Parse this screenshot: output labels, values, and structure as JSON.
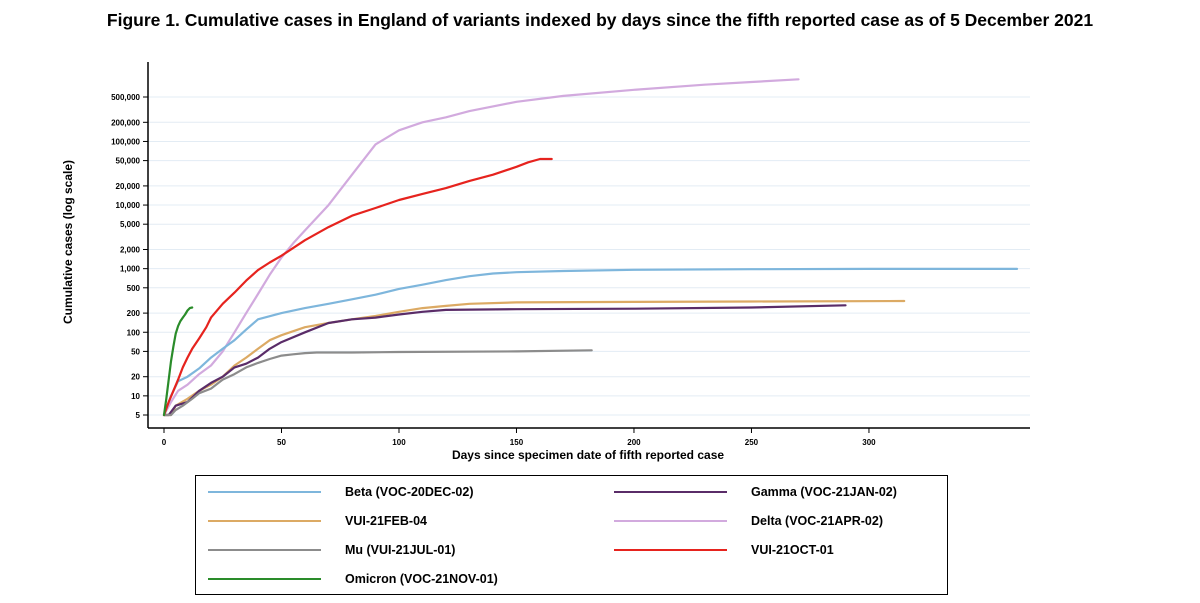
{
  "title": "Figure 1. Cumulative cases in England of variants indexed by days since the fifth reported case as of 5 December 2021",
  "chart_data": {
    "type": "line",
    "title": "Figure 1. Cumulative cases in England of variants indexed by days since the fifth reported case as of 5 December 2021",
    "xlabel": "Days since specimen date of fifth reported case",
    "ylabel": "Cumulative cases (log scale)",
    "yscale": "log",
    "xlim": [
      0,
      365
    ],
    "ylim": [
      5,
      1000000
    ],
    "x_ticks": [
      0,
      50,
      100,
      150,
      200,
      250,
      300
    ],
    "x_tick_labels": [
      "0",
      "50",
      "100",
      "150",
      "200",
      "250",
      "300"
    ],
    "y_ticks": [
      5,
      10,
      20,
      50,
      100,
      200,
      500,
      1000,
      2000,
      5000,
      10000,
      20000,
      50000,
      100000,
      200000,
      500000
    ],
    "y_tick_labels": [
      "5",
      "10",
      "20",
      "50",
      "100",
      "200",
      "500",
      "1,000",
      "2,000",
      "5,000",
      "10,000",
      "20,000",
      "50,000",
      "100,000",
      "200,000",
      "500,000"
    ],
    "grid": true,
    "legend_position": "bottom",
    "series": [
      {
        "name": "Beta (VOC-20DEC-02)",
        "color": "#7eb6dc",
        "x": [
          0,
          3,
          6,
          10,
          15,
          20,
          25,
          30,
          35,
          40,
          50,
          60,
          70,
          80,
          90,
          100,
          110,
          120,
          130,
          140,
          150,
          170,
          200,
          250,
          300,
          350,
          363
        ],
        "y": [
          5,
          10,
          17,
          20,
          27,
          40,
          55,
          75,
          110,
          160,
          200,
          240,
          280,
          330,
          390,
          480,
          560,
          660,
          760,
          840,
          880,
          920,
          960,
          980,
          990,
          990,
          990
        ]
      },
      {
        "name": "Gamma (VOC-21JAN-02)",
        "color": "#5a2c68",
        "x": [
          0,
          2,
          5,
          10,
          15,
          20,
          25,
          30,
          35,
          40,
          45,
          50,
          60,
          70,
          80,
          90,
          100,
          110,
          120,
          150,
          200,
          250,
          290
        ],
        "y": [
          5,
          5,
          7,
          8,
          12,
          16,
          20,
          28,
          32,
          40,
          55,
          70,
          100,
          140,
          160,
          170,
          190,
          210,
          225,
          230,
          235,
          245,
          265
        ]
      },
      {
        "name": "VUI-21FEB-04",
        "color": "#dcaa64",
        "x": [
          0,
          3,
          5,
          10,
          15,
          20,
          25,
          30,
          35,
          40,
          45,
          50,
          60,
          70,
          80,
          90,
          100,
          110,
          120,
          130,
          150,
          200,
          250,
          315
        ],
        "y": [
          5,
          5,
          7,
          9,
          12,
          15,
          20,
          30,
          40,
          55,
          75,
          90,
          120,
          140,
          160,
          180,
          210,
          240,
          260,
          280,
          295,
          300,
          305,
          310
        ]
      },
      {
        "name": "Delta (VOC-21APR-02)",
        "color": "#d2aade",
        "x": [
          0,
          3,
          6,
          10,
          15,
          20,
          25,
          30,
          35,
          40,
          45,
          50,
          55,
          60,
          70,
          80,
          90,
          100,
          110,
          120,
          130,
          150,
          170,
          200,
          230,
          250,
          270
        ],
        "y": [
          5,
          8,
          12,
          15,
          22,
          30,
          50,
          100,
          200,
          400,
          800,
          1500,
          2500,
          4000,
          10000,
          30000,
          90000,
          150000,
          200000,
          240000,
          300000,
          420000,
          520000,
          650000,
          780000,
          860000,
          950000
        ]
      },
      {
        "name": "Mu (VUI-21JUL-01)",
        "color": "#8c8c8c",
        "x": [
          0,
          3,
          5,
          8,
          12,
          15,
          20,
          25,
          30,
          35,
          40,
          45,
          50,
          55,
          60,
          65,
          80,
          100,
          150,
          182
        ],
        "y": [
          5,
          5,
          6,
          7,
          9,
          11,
          13,
          18,
          22,
          28,
          33,
          38,
          43,
          45,
          47,
          48,
          48,
          49,
          50,
          52
        ]
      },
      {
        "name": "VUI-21OCT-01",
        "color": "#e6231e",
        "x": [
          0,
          2,
          4,
          6,
          8,
          10,
          12,
          15,
          18,
          20,
          25,
          30,
          35,
          40,
          45,
          50,
          60,
          70,
          80,
          90,
          100,
          110,
          120,
          130,
          140,
          150,
          155,
          160,
          165
        ],
        "y": [
          5,
          8,
          12,
          18,
          28,
          40,
          55,
          80,
          120,
          170,
          280,
          420,
          650,
          950,
          1250,
          1600,
          2800,
          4500,
          6800,
          9000,
          12000,
          15000,
          18500,
          24000,
          30000,
          40000,
          47000,
          53000,
          53000
        ]
      },
      {
        "name": "Omicron (VOC-21NOV-01)",
        "color": "#2a8c2a",
        "x": [
          0,
          1,
          2,
          3,
          4,
          5,
          6,
          7,
          8,
          9,
          10,
          11,
          12
        ],
        "y": [
          5,
          9,
          18,
          35,
          60,
          95,
          125,
          150,
          170,
          190,
          220,
          240,
          245
        ]
      }
    ]
  },
  "legend": {
    "items": [
      {
        "label": "Beta (VOC-20DEC-02)",
        "color": "#7eb6dc"
      },
      {
        "label": "Gamma (VOC-21JAN-02)",
        "color": "#5a2c68"
      },
      {
        "label": "VUI-21FEB-04",
        "color": "#dcaa64"
      },
      {
        "label": "Delta (VOC-21APR-02)",
        "color": "#d2aade"
      },
      {
        "label": "Mu (VUI-21JUL-01)",
        "color": "#8c8c8c"
      },
      {
        "label": "VUI-21OCT-01",
        "color": "#e6231e"
      },
      {
        "label": "Omicron (VOC-21NOV-01)",
        "color": "#2a8c2a"
      }
    ]
  }
}
